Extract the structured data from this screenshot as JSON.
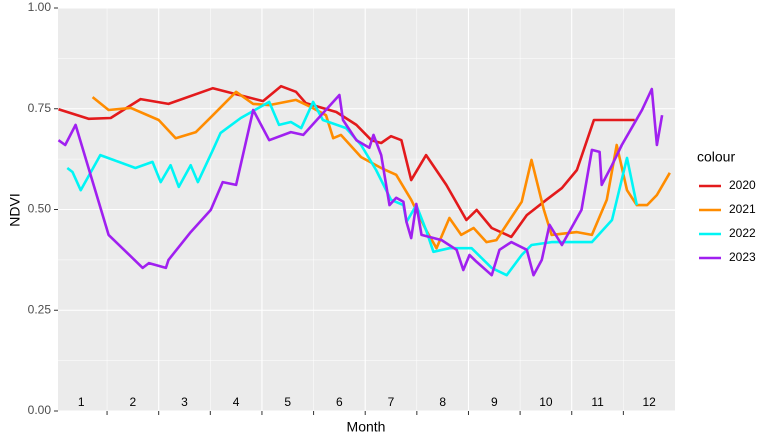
{
  "chart_data": {
    "type": "line",
    "x_label": "Month",
    "y_label": "NDVI",
    "legend_title": "colour",
    "legend_position": "right",
    "grid": true,
    "xlim": [
      1.05,
      13.0
    ],
    "xticks": [
      2,
      3,
      4,
      5,
      6,
      7,
      8,
      9,
      10,
      11,
      12
    ],
    "ylim": [
      0,
      1
    ],
    "yticks": [
      {
        "value": 0,
        "label": "0.00"
      },
      {
        "value": 0.25,
        "label": "0.25"
      },
      {
        "value": 0.5,
        "label": "0.50"
      },
      {
        "value": 0.75,
        "label": "0.75"
      },
      {
        "value": 1,
        "label": "1.00"
      }
    ],
    "annotations": [
      {
        "text": "1",
        "x": 1.5,
        "y": 0.02
      },
      {
        "text": "2",
        "x": 2.5,
        "y": 0.02
      },
      {
        "text": "3",
        "x": 3.5,
        "y": 0.02
      },
      {
        "text": "4",
        "x": 4.5,
        "y": 0.02
      },
      {
        "text": "5",
        "x": 5.5,
        "y": 0.02
      },
      {
        "text": "6",
        "x": 6.5,
        "y": 0.02
      },
      {
        "text": "7",
        "x": 7.5,
        "y": 0.02
      },
      {
        "text": "8",
        "x": 8.5,
        "y": 0.02
      },
      {
        "text": "9",
        "x": 9.5,
        "y": 0.02
      },
      {
        "text": "10",
        "x": 10.5,
        "y": 0.02
      },
      {
        "text": "11",
        "x": 11.5,
        "y": 0.02
      },
      {
        "text": "12",
        "x": 12.5,
        "y": 0.02
      }
    ],
    "series": [
      {
        "name": "2020",
        "color": "#e31a1c",
        "x": [
          1.06,
          1.64,
          2.07,
          2.65,
          3.19,
          4.05,
          5.02,
          5.37,
          5.66,
          5.85,
          6.44,
          6.83,
          7.12,
          7.31,
          7.5,
          7.7,
          7.89,
          8.18,
          8.57,
          8.96,
          9.16,
          9.45,
          9.83,
          10.13,
          10.51,
          10.81,
          11.1,
          11.43,
          12.22
        ],
        "values": [
          0.749,
          0.725,
          0.727,
          0.774,
          0.762,
          0.801,
          0.769,
          0.806,
          0.792,
          0.764,
          0.742,
          0.71,
          0.672,
          0.665,
          0.682,
          0.672,
          0.573,
          0.635,
          0.561,
          0.474,
          0.499,
          0.454,
          0.432,
          0.486,
          0.524,
          0.553,
          0.598,
          0.722,
          0.722
        ]
      },
      {
        "name": "2021",
        "color": "#ff8c00",
        "x": [
          1.72,
          2.03,
          2.46,
          3.0,
          3.33,
          3.72,
          4.05,
          4.5,
          4.83,
          5.14,
          5.66,
          5.95,
          6.24,
          6.38,
          6.53,
          6.92,
          7.31,
          7.6,
          7.89,
          8.18,
          8.38,
          8.63,
          8.86,
          9.1,
          9.35,
          9.54,
          10.03,
          10.22,
          10.46,
          10.61,
          11.1,
          11.39,
          11.68,
          11.87,
          12.07,
          12.26,
          12.46,
          12.65,
          12.9
        ],
        "values": [
          0.779,
          0.747,
          0.752,
          0.722,
          0.677,
          0.692,
          0.734,
          0.792,
          0.762,
          0.759,
          0.772,
          0.754,
          0.734,
          0.677,
          0.685,
          0.63,
          0.603,
          0.586,
          0.524,
          0.449,
          0.404,
          0.479,
          0.437,
          0.454,
          0.419,
          0.424,
          0.519,
          0.623,
          0.499,
          0.437,
          0.444,
          0.437,
          0.524,
          0.66,
          0.548,
          0.511,
          0.511,
          0.536,
          0.591
        ]
      },
      {
        "name": "2022",
        "color": "#00f5f5",
        "x": [
          1.23,
          1.33,
          1.49,
          1.87,
          2.55,
          2.88,
          3.04,
          3.23,
          3.39,
          3.62,
          3.76,
          4.05,
          4.2,
          4.59,
          5.14,
          5.33,
          5.56,
          5.76,
          5.99,
          6.18,
          6.63,
          6.92,
          7.21,
          7.5,
          7.74,
          7.8,
          7.99,
          8.18,
          8.32,
          8.63,
          9.06,
          9.45,
          9.74,
          10.03,
          10.22,
          10.61,
          11.39,
          11.78,
          12.07,
          12.26
        ],
        "values": [
          0.603,
          0.593,
          0.548,
          0.635,
          0.603,
          0.618,
          0.568,
          0.61,
          0.556,
          0.61,
          0.568,
          0.648,
          0.69,
          0.727,
          0.767,
          0.71,
          0.717,
          0.702,
          0.767,
          0.722,
          0.702,
          0.66,
          0.598,
          0.524,
          0.511,
          0.469,
          0.511,
          0.449,
          0.395,
          0.404,
          0.404,
          0.355,
          0.337,
          0.387,
          0.412,
          0.419,
          0.419,
          0.474,
          0.628,
          0.511
        ]
      },
      {
        "name": "2023",
        "color": "#a020f0",
        "x": [
          1.06,
          1.19,
          1.39,
          2.03,
          2.69,
          2.81,
          3.14,
          3.19,
          3.62,
          4.01,
          4.24,
          4.5,
          4.83,
          5.14,
          5.56,
          5.8,
          6.5,
          6.57,
          6.83,
          7.08,
          7.16,
          7.31,
          7.47,
          7.6,
          7.74,
          7.8,
          7.89,
          7.99,
          8.09,
          8.48,
          8.77,
          8.9,
          9.02,
          9.16,
          9.45,
          9.6,
          9.83,
          10.13,
          10.26,
          10.42,
          10.57,
          10.81,
          11.19,
          11.39,
          11.54,
          11.58,
          11.78,
          11.97,
          12.36,
          12.55,
          12.65,
          12.75
        ],
        "values": [
          0.672,
          0.66,
          0.71,
          0.437,
          0.355,
          0.367,
          0.355,
          0.375,
          0.444,
          0.499,
          0.568,
          0.561,
          0.747,
          0.672,
          0.692,
          0.685,
          0.784,
          0.722,
          0.672,
          0.653,
          0.685,
          0.635,
          0.511,
          0.529,
          0.519,
          0.469,
          0.429,
          0.514,
          0.437,
          0.424,
          0.4,
          0.35,
          0.387,
          0.37,
          0.337,
          0.4,
          0.419,
          0.4,
          0.337,
          0.375,
          0.462,
          0.412,
          0.499,
          0.648,
          0.643,
          0.561,
          0.61,
          0.66,
          0.747,
          0.799,
          0.66,
          0.734
        ]
      }
    ]
  }
}
